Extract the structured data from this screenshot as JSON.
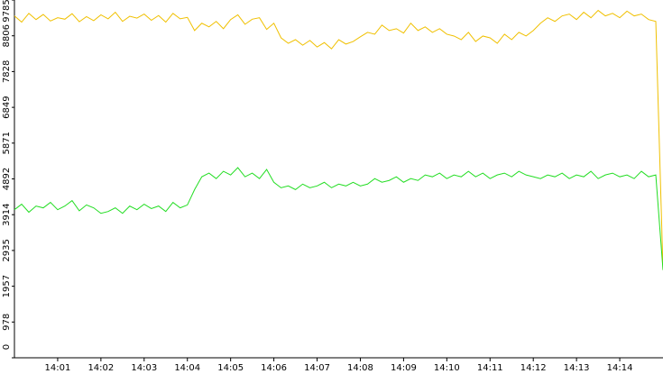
{
  "chart_data": {
    "type": "line",
    "categories": [
      null,
      null,
      null,
      null,
      null,
      null,
      "14:01",
      null,
      null,
      null,
      null,
      null,
      "14:02",
      null,
      null,
      null,
      null,
      null,
      "14:03",
      null,
      null,
      null,
      null,
      null,
      "14:04",
      null,
      null,
      null,
      null,
      null,
      "14:05",
      null,
      null,
      null,
      null,
      null,
      "14:06",
      null,
      null,
      null,
      null,
      null,
      "14:07",
      null,
      null,
      null,
      null,
      null,
      "14:08",
      null,
      null,
      null,
      null,
      null,
      "14:09",
      null,
      null,
      null,
      null,
      null,
      "14:10",
      null,
      null,
      null,
      null,
      null,
      "14:11",
      null,
      null,
      null,
      null,
      null,
      "14:12",
      null,
      null,
      null,
      null,
      null,
      "14:13",
      null,
      null,
      null,
      null,
      null,
      "14:14",
      null,
      null,
      null,
      null,
      null,
      null
    ],
    "series": [
      {
        "color": "#f0c000",
        "values": [
          9350,
          9180,
          9420,
          9250,
          9390,
          9210,
          9300,
          9260,
          9410,
          9190,
          9330,
          9220,
          9380,
          9270,
          9450,
          9200,
          9340,
          9290,
          9400,
          9230,
          9360,
          9180,
          9420,
          9270,
          9310,
          8950,
          9150,
          9050,
          9200,
          9000,
          9250,
          9380,
          9120,
          9260,
          9300,
          8980,
          9150,
          8750,
          8600,
          8700,
          8550,
          8680,
          8500,
          8620,
          8450,
          8700,
          8580,
          8650,
          8780,
          8900,
          8850,
          9100,
          8950,
          9000,
          8880,
          9150,
          8950,
          9050,
          8900,
          9000,
          8850,
          8800,
          8700,
          8900,
          8650,
          8800,
          8750,
          8600,
          8850,
          8700,
          8900,
          8800,
          8950,
          9150,
          9300,
          9200,
          9350,
          9400,
          9250,
          9450,
          9300,
          9500,
          9350,
          9420,
          9300,
          9480,
          9350,
          9400,
          9250,
          9200,
          2400
        ]
      },
      {
        "color": "#22dd22",
        "values": [
          4050,
          4200,
          3980,
          4150,
          4100,
          4250,
          4050,
          4150,
          4300,
          4020,
          4180,
          4100,
          3950,
          4000,
          4100,
          3950,
          4150,
          4050,
          4200,
          4080,
          4150,
          4000,
          4250,
          4100,
          4180,
          4600,
          4950,
          5050,
          4900,
          5100,
          5000,
          5200,
          4950,
          5050,
          4900,
          5150,
          4800,
          4650,
          4700,
          4600,
          4750,
          4650,
          4700,
          4800,
          4650,
          4750,
          4700,
          4800,
          4700,
          4750,
          4900,
          4800,
          4850,
          4950,
          4800,
          4900,
          4850,
          5000,
          4950,
          5050,
          4900,
          5000,
          4950,
          5100,
          4950,
          5050,
          4900,
          5000,
          5050,
          4950,
          5100,
          5000,
          4950,
          4900,
          5000,
          4950,
          5050,
          4900,
          5000,
          4950,
          5100,
          4900,
          5000,
          5050,
          4950,
          5000,
          4900,
          5100,
          4950,
          5000,
          2400
        ]
      }
    ],
    "ylim": [
      0,
      9785
    ],
    "yticks": [
      0,
      978,
      1957,
      2935,
      3914,
      4892,
      5871,
      6849,
      7828,
      8806,
      9785
    ]
  }
}
